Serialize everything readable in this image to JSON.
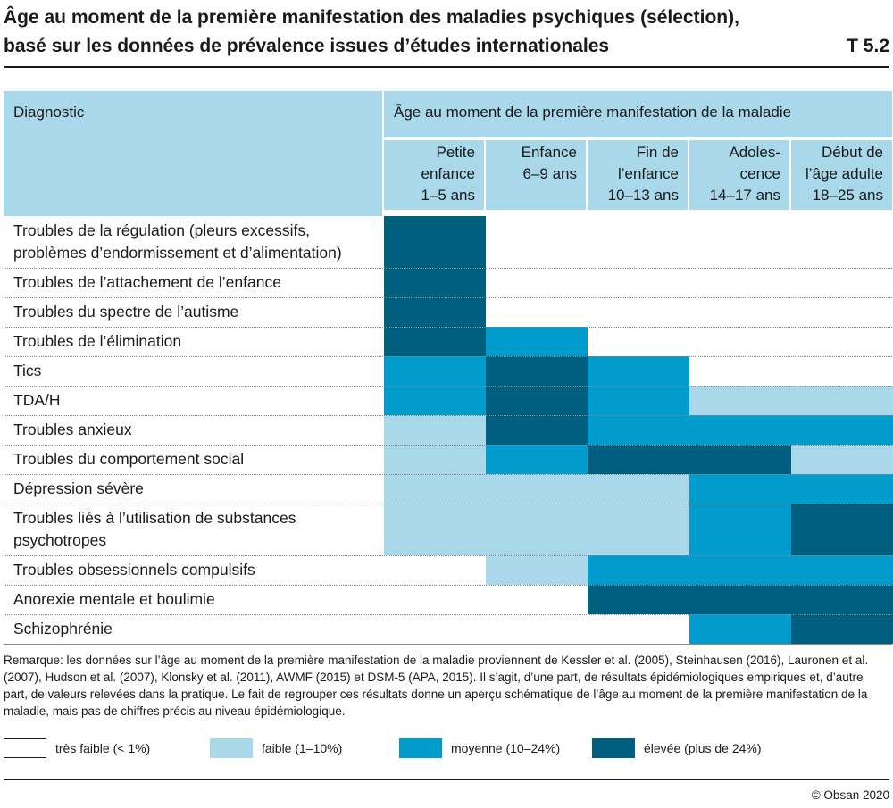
{
  "title": {
    "line1": "Âge au moment de la première manifestation des maladies psychiques (sélection),",
    "line2": "basé sur les données de prévalence issues d’études internationales",
    "code": "T 5.2"
  },
  "colors": {
    "tres_faible": "#ffffff",
    "faible": "#a8d8ea",
    "moyenne": "#009ccd",
    "elevee": "#005f7f",
    "header": "#a8d8ea"
  },
  "table": {
    "diagnostic_header": "Diagnostic",
    "age_header": "Âge au moment de la première manifestation de la maladie",
    "columns": [
      {
        "lines": [
          "Petite",
          "enfance",
          "1–5 ans"
        ]
      },
      {
        "lines": [
          "Enfance",
          "6–9 ans"
        ]
      },
      {
        "lines": [
          "Fin de",
          "l’enfance",
          "10–13 ans"
        ]
      },
      {
        "lines": [
          "Adoles-",
          "cence",
          "14–17 ans"
        ]
      },
      {
        "lines": [
          "Début de",
          "l’âge adulte",
          "18–25 ans"
        ]
      }
    ],
    "rows": [
      {
        "label": "Troubles de la régulation (pleurs excessifs, problèmes d’endormissement et d’alimentation)",
        "levels": [
          "elevee",
          "tres_faible",
          "tres_faible",
          "tres_faible",
          "tres_faible"
        ]
      },
      {
        "label": "Troubles de l’attachement de l’enfance",
        "levels": [
          "elevee",
          "tres_faible",
          "tres_faible",
          "tres_faible",
          "tres_faible"
        ]
      },
      {
        "label": "Troubles du spectre de l’autisme",
        "levels": [
          "elevee",
          "tres_faible",
          "tres_faible",
          "tres_faible",
          "tres_faible"
        ]
      },
      {
        "label": "Troubles de l’élimination",
        "levels": [
          "elevee",
          "moyenne",
          "tres_faible",
          "tres_faible",
          "tres_faible"
        ]
      },
      {
        "label": "Tics",
        "levels": [
          "moyenne",
          "elevee",
          "moyenne",
          "tres_faible",
          "tres_faible"
        ]
      },
      {
        "label": "TDA/H",
        "levels": [
          "moyenne",
          "elevee",
          "moyenne",
          "faible",
          "faible"
        ]
      },
      {
        "label": "Troubles anxieux",
        "levels": [
          "faible",
          "elevee",
          "moyenne",
          "moyenne",
          "moyenne"
        ]
      },
      {
        "label": "Troubles du comportement social",
        "levels": [
          "faible",
          "moyenne",
          "elevee",
          "elevee",
          "faible"
        ]
      },
      {
        "label": "Dépression sévère",
        "levels": [
          "faible",
          "faible",
          "faible",
          "moyenne",
          "moyenne"
        ]
      },
      {
        "label": "Troubles liés à l’utilisation de substances psychotropes",
        "levels": [
          "faible",
          "faible",
          "faible",
          "moyenne",
          "elevee"
        ]
      },
      {
        "label": "Troubles obsessionnels compulsifs",
        "levels": [
          "tres_faible",
          "faible",
          "moyenne",
          "moyenne",
          "moyenne"
        ]
      },
      {
        "label": "Anorexie mentale et boulimie",
        "levels": [
          "tres_faible",
          "tres_faible",
          "elevee",
          "elevee",
          "elevee"
        ]
      },
      {
        "label": "Schizophrénie",
        "levels": [
          "tres_faible",
          "tres_faible",
          "tres_faible",
          "moyenne",
          "elevee"
        ]
      }
    ]
  },
  "note": "Remarque: les données sur l’âge au moment de la première manifestation de la maladie proviennent de Kessler et al. (2005), Steinhausen (2016), Lauronen et al. (2007), Hudson et al. (2007), Klonsky et al. (2011), AWMF (2015) et DSM-5 (APA, 2015). Il s’agit, d’une part, de résultats épidémiologiques empiriques et, d’autre part, de valeurs relevées dans la pratique. Le fait de regrouper ces résultats donne un aperçu schématique de l’âge au moment de la première manifestation de la maladie, mais pas de chiffres précis au niveau épidémiologique.",
  "legend": [
    {
      "key": "tres_faible",
      "label": "très faible (< 1%)"
    },
    {
      "key": "faible",
      "label": "faible (1–10%)"
    },
    {
      "key": "moyenne",
      "label": "moyenne (10–24%)"
    },
    {
      "key": "elevee",
      "label": "élevée (plus de 24%)"
    }
  ],
  "copyright": "© Obsan 2020"
}
